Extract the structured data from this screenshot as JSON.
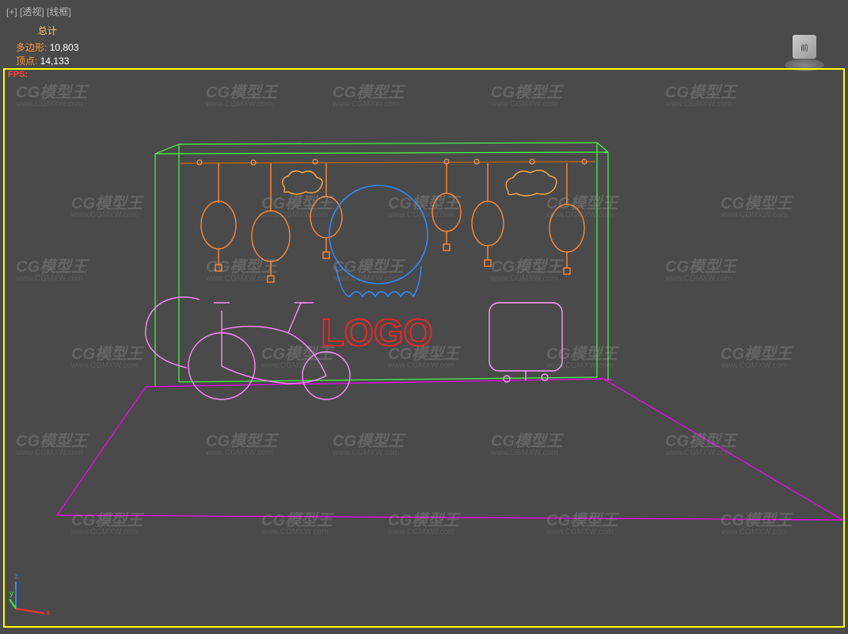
{
  "header": {
    "plus": "[+]",
    "perspective": "[透视]",
    "wireframe": "[线框]"
  },
  "stats": {
    "total_label": "总计",
    "polys_label": "多边形:",
    "polys_value": "10,803",
    "verts_label": "顶点:",
    "verts_value": "14,133"
  },
  "fps": "FPS:",
  "viewcube": {
    "face": "前"
  },
  "scene": {
    "logo_text": "LOGO",
    "colors": {
      "bg": "#4a4a4a",
      "viewport_outline": "#ffff00",
      "frame": "#44ff44",
      "floor": "#ff00ff",
      "circle": "#3388ff",
      "lantern": "#ff8833",
      "cloud": "#ffaa44",
      "logo": "#ff2222",
      "bike": "#ff88ff",
      "suitcase": "#ff99ff",
      "rod": "#cc6600"
    }
  },
  "watermarks": {
    "main": "CG模型王",
    "sub": "www.CGMXW.com"
  },
  "axis": {
    "x": "x",
    "y": "y",
    "z": "z",
    "colors": {
      "x": "#ff3333",
      "y": "#33ff33",
      "z": "#3388ff"
    }
  }
}
